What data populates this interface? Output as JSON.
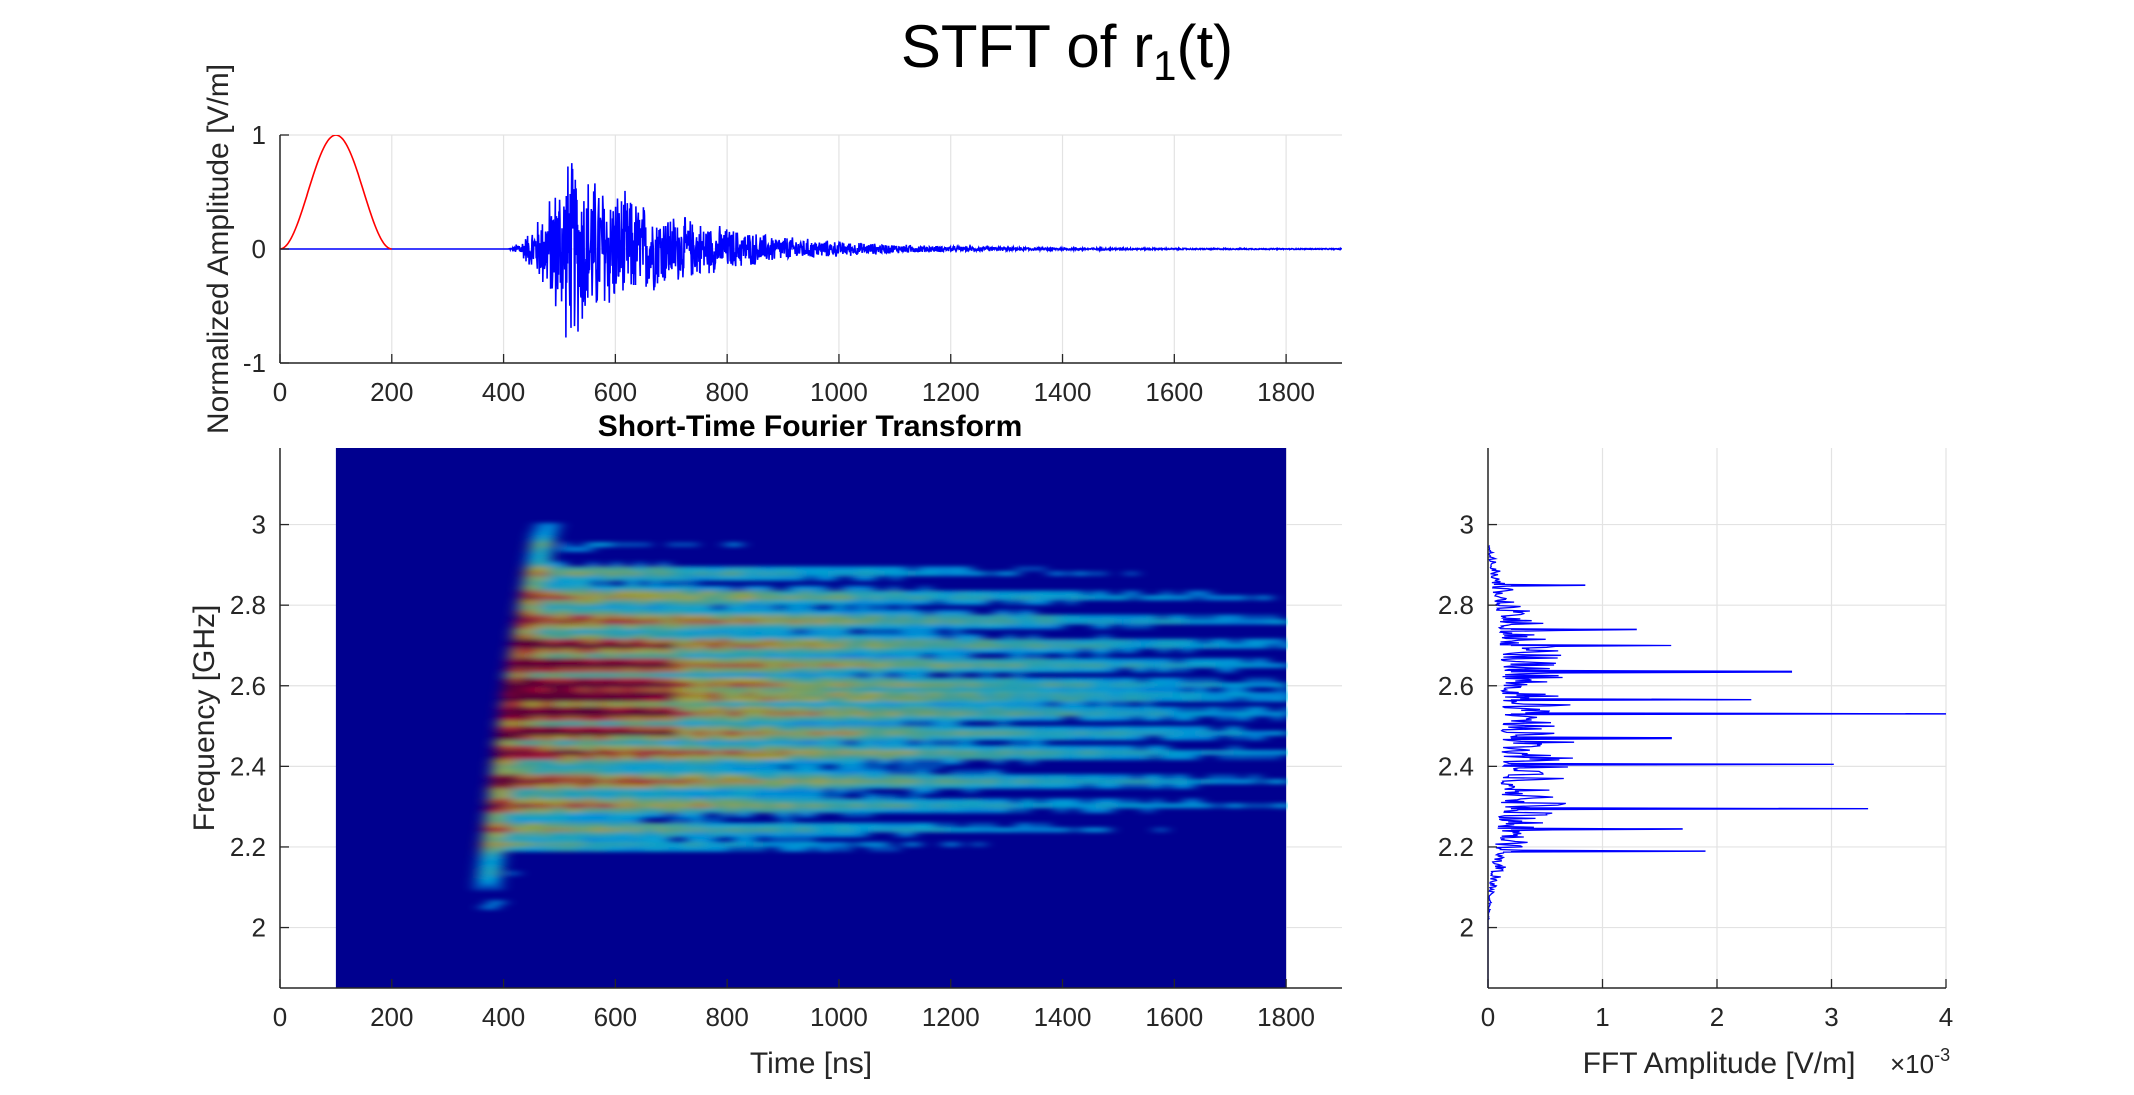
{
  "figure": {
    "title_main": "STFT of r",
    "title_sub": "1",
    "title_tail": "(t)"
  },
  "chart_data": [
    {
      "type": "line",
      "panel": "time-signal",
      "title": "",
      "xlabel": "",
      "ylabel": "Normalized Amplitude [V/m]",
      "xlim": [
        0,
        1900
      ],
      "ylim": [
        -1,
        1
      ],
      "xticks": [
        0,
        200,
        400,
        600,
        800,
        1000,
        1200,
        1400,
        1600,
        1800
      ],
      "yticks": [
        -1,
        0,
        1
      ],
      "grid": true,
      "series": [
        {
          "color": "#ff0000",
          "kind": "pulse",
          "x": [
            0,
            25,
            50,
            75,
            100,
            125,
            150,
            175,
            200
          ],
          "y": [
            0,
            0.15,
            0.5,
            0.85,
            1,
            0.85,
            0.5,
            0.15,
            0
          ]
        },
        {
          "color": "#0000ff",
          "kind": "decaying-noise",
          "onset": 420,
          "peak_time": 515,
          "peak": 1,
          "decay_end": 1900
        }
      ]
    },
    {
      "type": "heatmap",
      "panel": "stft",
      "title": "Short-Time Fourier Transform",
      "xlabel": "Time [ns]",
      "ylabel": "Frequency [GHz]",
      "xlim": [
        0,
        1900
      ],
      "ylim": [
        1.85,
        3.19
      ],
      "xticks": [
        0,
        200,
        400,
        600,
        800,
        1000,
        1200,
        1400,
        1600,
        1800
      ],
      "yticks": [
        2,
        2.2,
        2.4,
        2.6,
        2.8,
        3
      ],
      "grid": true,
      "data_time_range": [
        100,
        1800
      ],
      "colormap": "jet",
      "onset_edge": [
        [
          350,
          2.1
        ],
        [
          400,
          2.6
        ],
        [
          450,
          2.97
        ]
      ],
      "energy_bands_ghz": [
        2.05,
        2.13,
        2.2,
        2.24,
        2.3,
        2.36,
        2.43,
        2.48,
        2.53,
        2.57,
        2.6,
        2.65,
        2.7,
        2.76,
        2.82,
        2.88,
        2.95
      ],
      "strongest_region": {
        "time": [
          420,
          700
        ],
        "freq": [
          2.48,
          2.7
        ]
      }
    },
    {
      "type": "line",
      "panel": "fft-spectrum",
      "title": "",
      "xlabel": "FFT Amplitude [V/m]",
      "xscale_label": "×10",
      "xscale_exp": "-3",
      "ylabel": "",
      "xlim": [
        0,
        4
      ],
      "ylim": [
        1.85,
        3.19
      ],
      "xticks": [
        0,
        1,
        2,
        3,
        4
      ],
      "yticks": [
        2,
        2.2,
        2.4,
        2.6,
        2.8,
        3
      ],
      "grid": true,
      "series": [
        {
          "color": "#0000ff",
          "peaks": [
            {
              "freq": 2.19,
              "amp": 1.9
            },
            {
              "freq": 2.245,
              "amp": 1.7
            },
            {
              "freq": 2.295,
              "amp": 3.32
            },
            {
              "freq": 2.405,
              "amp": 3.02
            },
            {
              "freq": 2.47,
              "amp": 1.6
            },
            {
              "freq": 2.53,
              "amp": 4.0
            },
            {
              "freq": 2.565,
              "amp": 2.3
            },
            {
              "freq": 2.635,
              "amp": 2.65
            },
            {
              "freq": 2.7,
              "amp": 1.6
            },
            {
              "freq": 2.74,
              "amp": 1.3
            },
            {
              "freq": 2.85,
              "amp": 0.85
            }
          ],
          "support": [
            2.02,
            2.95
          ]
        }
      ]
    }
  ]
}
